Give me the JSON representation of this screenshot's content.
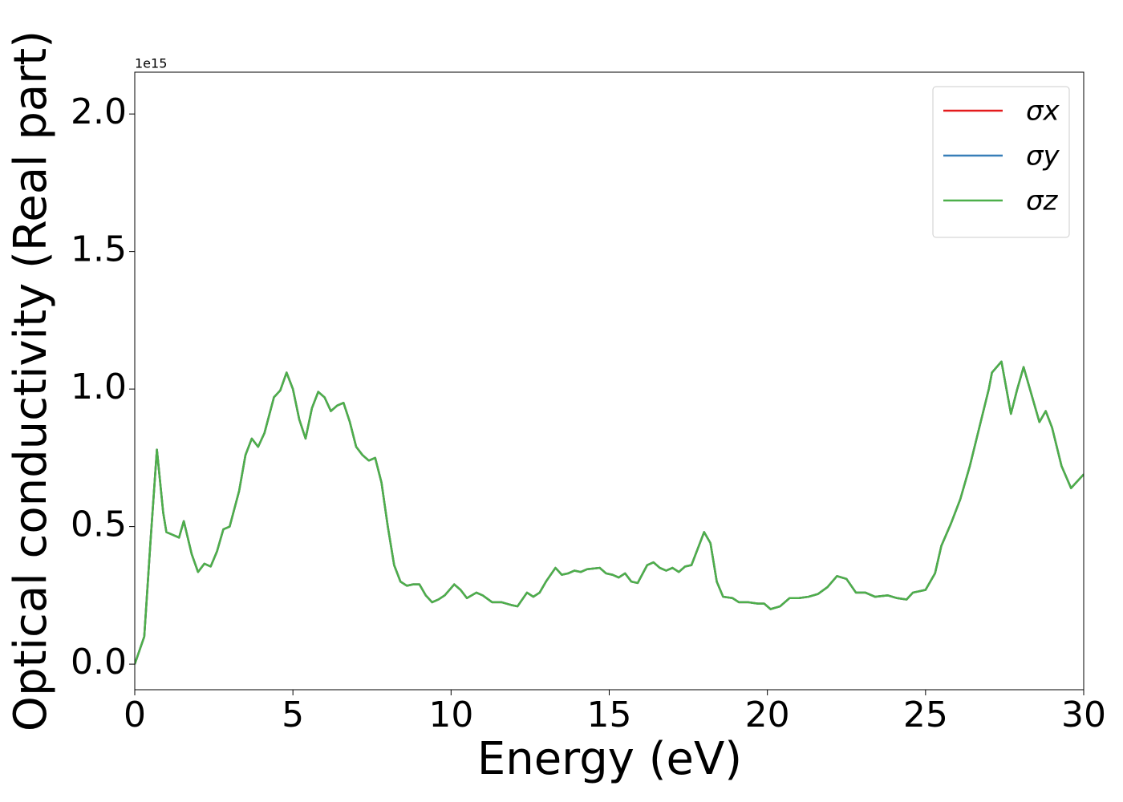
{
  "chart_data": {
    "type": "line",
    "xlabel": "Energy (eV)",
    "ylabel": "Optical conductivity (Real part)",
    "y_offset_label": "1e15",
    "xlim": [
      0,
      30
    ],
    "xticks": [
      0,
      5,
      10,
      15,
      20,
      25,
      30
    ],
    "ylim": [
      -0.093,
      2.152
    ],
    "yticks": [
      {
        "value": 0,
        "label": "0.0"
      },
      0.5,
      {
        "value": 1,
        "label": "1.0"
      },
      1.5,
      {
        "value": 2,
        "label": "2.0"
      }
    ],
    "legend": "upper right",
    "x": [
      0,
      0.3,
      0.5,
      0.7,
      0.9,
      1.0,
      1.2,
      1.4,
      1.55,
      1.8,
      2.0,
      2.2,
      2.4,
      2.6,
      2.8,
      3.0,
      3.3,
      3.5,
      3.7,
      3.9,
      4.1,
      4.4,
      4.6,
      4.8,
      5.0,
      5.2,
      5.4,
      5.6,
      5.8,
      6.0,
      6.2,
      6.4,
      6.6,
      6.8,
      7.0,
      7.2,
      7.4,
      7.6,
      7.8,
      8.0,
      8.2,
      8.4,
      8.6,
      8.8,
      9.0,
      9.2,
      9.4,
      9.6,
      9.8,
      10.1,
      10.3,
      10.5,
      10.8,
      11.0,
      11.3,
      11.6,
      11.9,
      12.1,
      12.4,
      12.6,
      12.8,
      13.0,
      13.3,
      13.5,
      13.7,
      13.9,
      14.1,
      14.3,
      14.7,
      14.9,
      15.1,
      15.3,
      15.5,
      15.7,
      15.9,
      16.2,
      16.4,
      16.6,
      16.8,
      17.0,
      17.2,
      17.4,
      17.6,
      17.8,
      18.0,
      18.2,
      18.4,
      18.6,
      18.9,
      19.1,
      19.4,
      19.7,
      19.9,
      20.1,
      20.4,
      20.7,
      21.0,
      21.3,
      21.6,
      21.9,
      22.2,
      22.5,
      22.8,
      23.1,
      23.4,
      23.8,
      24.1,
      24.4,
      24.6,
      25.0,
      25.3,
      25.5,
      25.8,
      26.1,
      26.4,
      26.7,
      27.0,
      27.1,
      27.4,
      27.7,
      27.9,
      28.1,
      28.3,
      28.6,
      28.8,
      29.0,
      29.3,
      29.6,
      30.0
    ],
    "series": [
      {
        "name": "σx",
        "color": "#e41a1c",
        "values": [
          0,
          0.1,
          0.45,
          0.78,
          0.55,
          0.48,
          0.47,
          0.46,
          0.52,
          0.4,
          0.335,
          0.365,
          0.355,
          0.41,
          0.49,
          0.5,
          0.63,
          0.76,
          0.82,
          0.79,
          0.84,
          0.97,
          0.995,
          1.06,
          1.0,
          0.89,
          0.82,
          0.93,
          0.99,
          0.97,
          0.92,
          0.94,
          0.95,
          0.88,
          0.79,
          0.76,
          0.74,
          0.75,
          0.66,
          0.5,
          0.36,
          0.3,
          0.285,
          0.29,
          0.29,
          0.25,
          0.225,
          0.235,
          0.25,
          0.29,
          0.27,
          0.24,
          0.26,
          0.25,
          0.225,
          0.225,
          0.215,
          0.21,
          0.26,
          0.245,
          0.26,
          0.3,
          0.35,
          0.325,
          0.33,
          0.34,
          0.335,
          0.345,
          0.35,
          0.33,
          0.325,
          0.315,
          0.33,
          0.3,
          0.295,
          0.36,
          0.37,
          0.35,
          0.34,
          0.35,
          0.335,
          0.355,
          0.36,
          0.42,
          0.48,
          0.44,
          0.3,
          0.245,
          0.24,
          0.225,
          0.225,
          0.22,
          0.22,
          0.2,
          0.21,
          0.24,
          0.24,
          0.245,
          0.255,
          0.28,
          0.32,
          0.31,
          0.26,
          0.26,
          0.245,
          0.25,
          0.24,
          0.235,
          0.26,
          0.27,
          0.33,
          0.43,
          0.51,
          0.6,
          0.72,
          0.86,
          1.0,
          1.06,
          1.1,
          0.91,
          1.0,
          1.08,
          1.0,
          0.88,
          0.92,
          0.86,
          0.72,
          0.64,
          0.69
        ]
      },
      {
        "name": "σy",
        "color": "#377eb8",
        "values": [
          0,
          0.1,
          0.45,
          0.78,
          0.55,
          0.48,
          0.47,
          0.46,
          0.52,
          0.4,
          0.335,
          0.365,
          0.355,
          0.41,
          0.49,
          0.5,
          0.63,
          0.76,
          0.82,
          0.79,
          0.84,
          0.97,
          0.995,
          1.06,
          1.0,
          0.89,
          0.82,
          0.93,
          0.99,
          0.97,
          0.92,
          0.94,
          0.95,
          0.88,
          0.79,
          0.76,
          0.74,
          0.75,
          0.66,
          0.5,
          0.36,
          0.3,
          0.285,
          0.29,
          0.29,
          0.25,
          0.225,
          0.235,
          0.25,
          0.29,
          0.27,
          0.24,
          0.26,
          0.25,
          0.225,
          0.225,
          0.215,
          0.21,
          0.26,
          0.245,
          0.26,
          0.3,
          0.35,
          0.325,
          0.33,
          0.34,
          0.335,
          0.345,
          0.35,
          0.33,
          0.325,
          0.315,
          0.33,
          0.3,
          0.295,
          0.36,
          0.37,
          0.35,
          0.34,
          0.35,
          0.335,
          0.355,
          0.36,
          0.42,
          0.48,
          0.44,
          0.3,
          0.245,
          0.24,
          0.225,
          0.225,
          0.22,
          0.22,
          0.2,
          0.21,
          0.24,
          0.24,
          0.245,
          0.255,
          0.28,
          0.32,
          0.31,
          0.26,
          0.26,
          0.245,
          0.25,
          0.24,
          0.235,
          0.26,
          0.27,
          0.33,
          0.43,
          0.51,
          0.6,
          0.72,
          0.86,
          1.0,
          1.06,
          1.1,
          0.91,
          1.0,
          1.08,
          1.0,
          0.88,
          0.92,
          0.86,
          0.72,
          0.64,
          0.69
        ]
      },
      {
        "name": "σz",
        "color": "#4daf4a",
        "values": [
          0,
          0.1,
          0.45,
          0.78,
          0.55,
          0.48,
          0.47,
          0.46,
          0.52,
          0.4,
          0.335,
          0.365,
          0.355,
          0.41,
          0.49,
          0.5,
          0.63,
          0.76,
          0.82,
          0.79,
          0.84,
          0.97,
          0.995,
          1.06,
          1.0,
          0.89,
          0.82,
          0.93,
          0.99,
          0.97,
          0.92,
          0.94,
          0.95,
          0.88,
          0.79,
          0.76,
          0.74,
          0.75,
          0.66,
          0.5,
          0.36,
          0.3,
          0.285,
          0.29,
          0.29,
          0.25,
          0.225,
          0.235,
          0.25,
          0.29,
          0.27,
          0.24,
          0.26,
          0.25,
          0.225,
          0.225,
          0.215,
          0.21,
          0.26,
          0.245,
          0.26,
          0.3,
          0.35,
          0.325,
          0.33,
          0.34,
          0.335,
          0.345,
          0.35,
          0.33,
          0.325,
          0.315,
          0.33,
          0.3,
          0.295,
          0.36,
          0.37,
          0.35,
          0.34,
          0.35,
          0.335,
          0.355,
          0.36,
          0.42,
          0.48,
          0.44,
          0.3,
          0.245,
          0.24,
          0.225,
          0.225,
          0.22,
          0.22,
          0.2,
          0.21,
          0.24,
          0.24,
          0.245,
          0.255,
          0.28,
          0.32,
          0.31,
          0.26,
          0.26,
          0.245,
          0.25,
          0.24,
          0.235,
          0.26,
          0.27,
          0.33,
          0.43,
          0.51,
          0.6,
          0.72,
          0.86,
          1.0,
          1.06,
          1.1,
          0.91,
          1.0,
          1.08,
          1.0,
          0.88,
          0.92,
          0.86,
          0.72,
          0.64,
          0.69
        ]
      }
    ]
  }
}
